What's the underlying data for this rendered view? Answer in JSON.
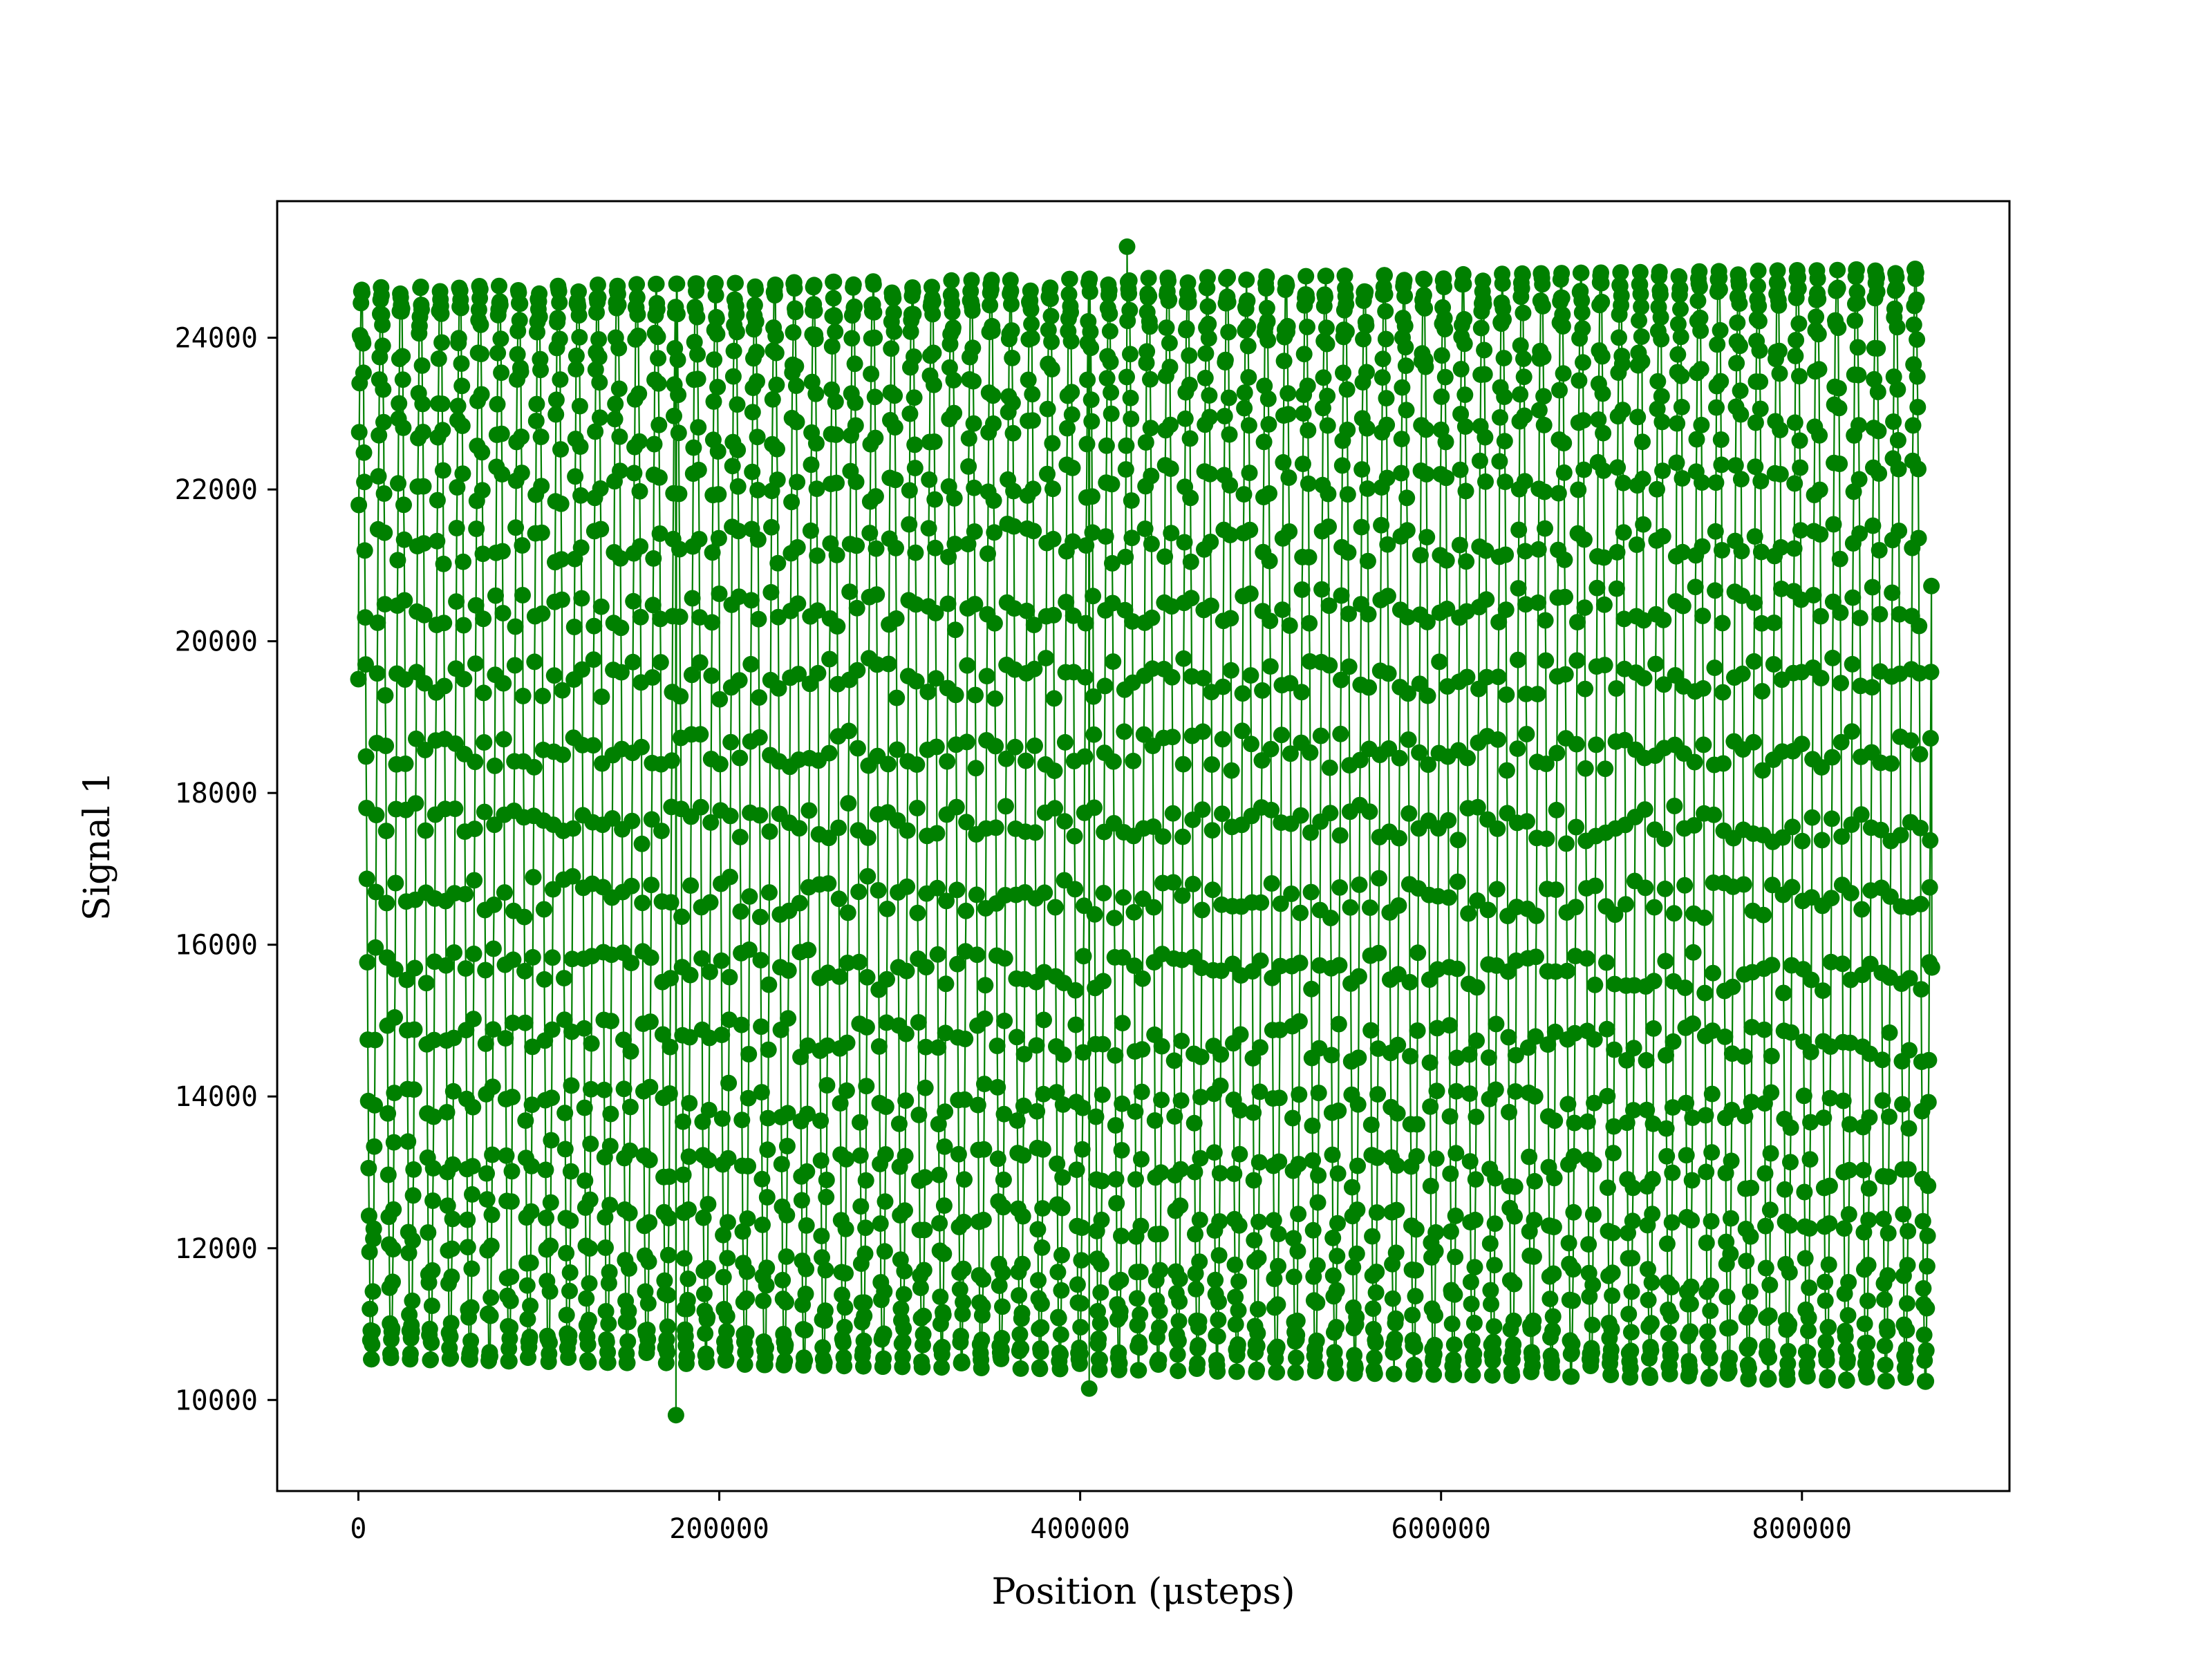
{
  "chart_data": {
    "type": "line",
    "title": "",
    "xlabel": "Position (μsteps)",
    "ylabel": "Signal 1",
    "xlim": [
      -45000,
      915000
    ],
    "ylim": [
      8800,
      25800
    ],
    "x_ticks": [
      0,
      200000,
      400000,
      600000,
      800000
    ],
    "x_tick_labels": [
      "0",
      "200000",
      "400000",
      "600000",
      "800000"
    ],
    "y_ticks": [
      10000,
      12000,
      14000,
      16000,
      18000,
      20000,
      22000,
      24000
    ],
    "y_tick_labels": [
      "10000",
      "12000",
      "14000",
      "16000",
      "18000",
      "20000",
      "22000",
      "24000"
    ],
    "grid": false,
    "legend": "none",
    "markers": true,
    "series": [
      {
        "color": "#008000",
        "x_start": 0,
        "x_end": 872000,
        "oscillation_count": 80,
        "envelope_max_start": 24600,
        "envelope_max_end": 24850,
        "envelope_min_start": 10600,
        "envelope_min_end": 10300,
        "first_value": 19500,
        "last_value": 15700,
        "outliers": [
          {
            "x": 176000,
            "y": 9500
          },
          {
            "x": 176000,
            "y": 9800
          },
          {
            "x": 405000,
            "y": 10150
          },
          {
            "x": 426000,
            "y": 25200
          }
        ]
      }
    ]
  }
}
